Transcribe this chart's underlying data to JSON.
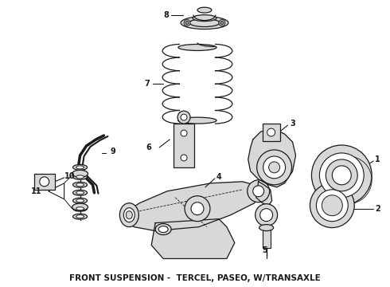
{
  "title": "FRONT SUSPENSION -  TERCEL, PASEO, W/TRANSAXLE",
  "title_fontsize": 7.5,
  "bg_color": "#ffffff",
  "fig_width": 4.9,
  "fig_height": 3.6,
  "dpi": 100,
  "line_color": "#1a1a1a",
  "fill_color": "#d8d8d8",
  "dark_fill": "#a0a0a0"
}
